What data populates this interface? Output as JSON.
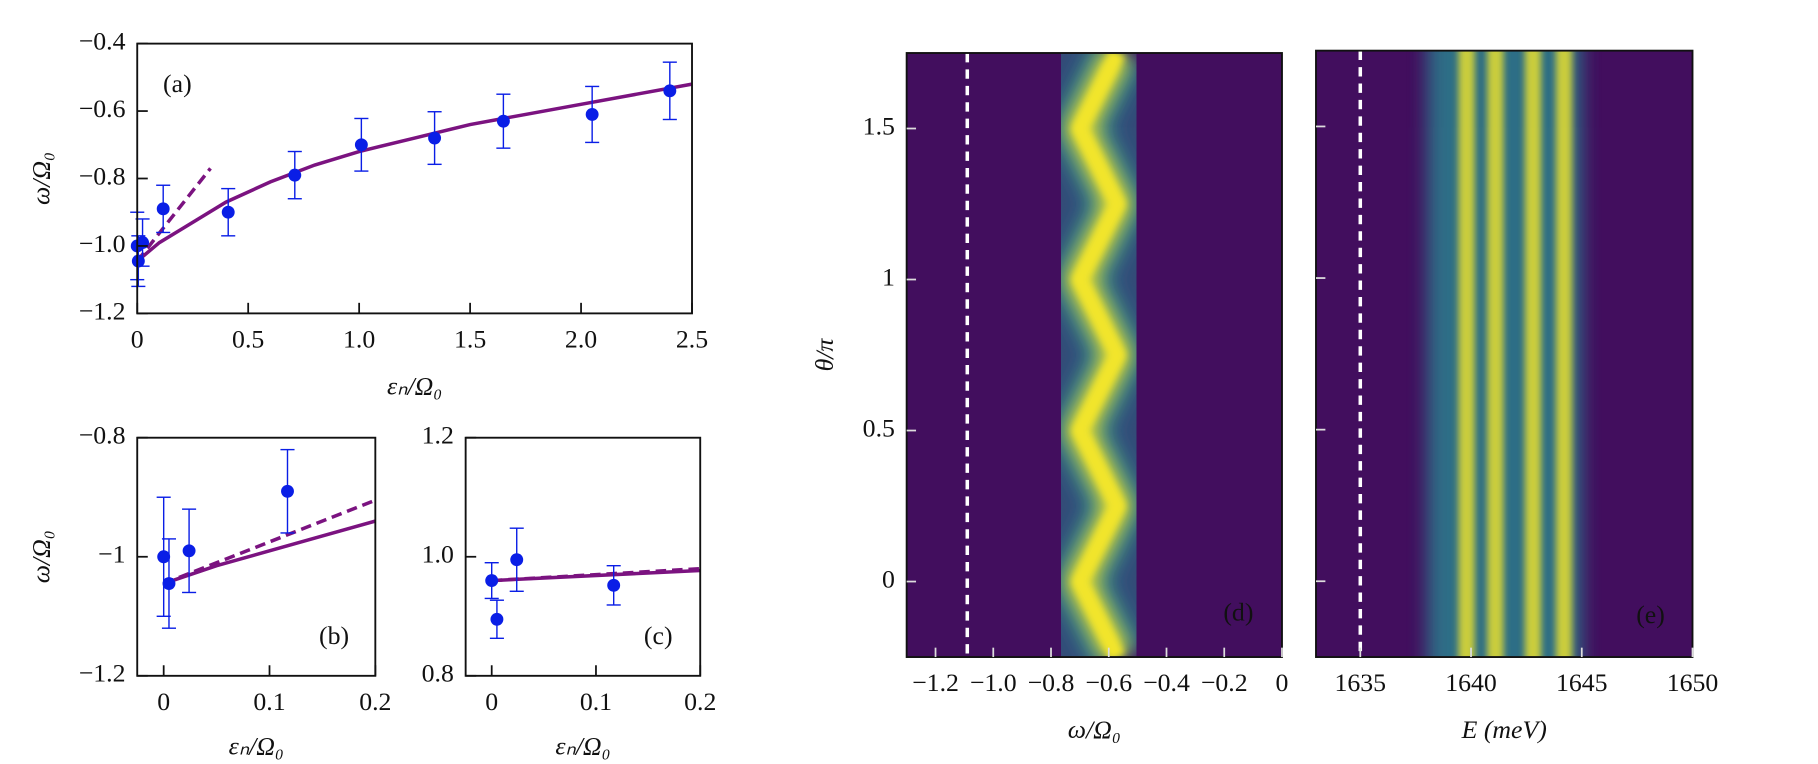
{
  "chart_data": [
    {
      "type": "scatter",
      "annotation": "(a)",
      "xlabel": "εₙ/Ω₀",
      "ylabel": "ω/Ω₀",
      "xlim": [
        0,
        2.5
      ],
      "xticks": [
        0,
        0.5,
        {
          "value": 1,
          "label": "1.0"
        },
        1.5,
        {
          "value": 2,
          "label": "2.0"
        },
        2.5
      ],
      "ylim": [
        -1.2,
        -0.4
      ],
      "yticks": [
        {
          "value": -1.2,
          "label": "−1.2"
        },
        {
          "value": -1.0,
          "label": "−1.0"
        },
        {
          "value": -0.8,
          "label": "−0.8"
        },
        {
          "value": -0.6,
          "label": "−0.6"
        },
        {
          "value": -0.4,
          "label": "−0.4"
        }
      ],
      "points": {
        "color": "#0a1ee6",
        "x": [
          0,
          0.005,
          0.024,
          0.117,
          0.41,
          0.71,
          1.01,
          1.34,
          1.65,
          2.05,
          2.4
        ],
        "values": [
          -1.0,
          -1.045,
          -0.99,
          -0.89,
          -0.9,
          -0.79,
          -0.7,
          -0.68,
          -0.63,
          -0.61,
          -0.54
        ],
        "errors": [
          0.1,
          0.075,
          0.07,
          0.07,
          0.07,
          0.07,
          0.078,
          0.078,
          0.08,
          0.083,
          0.085
        ]
      },
      "series": [
        {
          "style": "solid",
          "color": "#7b1380",
          "x": [
            0,
            0.1,
            0.2,
            0.4,
            0.6,
            0.8,
            1.0,
            1.25,
            1.5,
            1.75,
            2.0,
            2.25,
            2.5
          ],
          "values": [
            -1.045,
            -0.99,
            -0.95,
            -0.87,
            -0.81,
            -0.76,
            -0.72,
            -0.68,
            -0.64,
            -0.61,
            -0.58,
            -0.55,
            -0.52
          ]
        },
        {
          "style": "dashed",
          "color": "#7b1380",
          "x": [
            0,
            0.33
          ],
          "values": [
            -1.045,
            -0.77
          ]
        }
      ]
    },
    {
      "type": "scatter",
      "annotation": "(b)",
      "xlabel": "εₙ/Ω₀",
      "ylabel": "ω/Ω₀",
      "xlim": [
        -0.025,
        0.2
      ],
      "xticks": [
        0,
        0.1,
        0.2
      ],
      "ylim": [
        -1.2,
        -0.8
      ],
      "yticks": [
        {
          "value": -1.2,
          "label": "−1.2"
        },
        {
          "value": -1,
          "label": "−1"
        },
        {
          "value": -0.8,
          "label": "−0.8"
        }
      ],
      "points": {
        "color": "#0a1ee6",
        "x": [
          0,
          0.005,
          0.024,
          0.117
        ],
        "values": [
          -1.0,
          -1.045,
          -0.99,
          -0.89
        ],
        "errors": [
          0.1,
          0.075,
          0.07,
          0.07
        ]
      },
      "series": [
        {
          "style": "solid",
          "color": "#7b1380",
          "x": [
            0,
            0.05,
            0.1,
            0.15,
            0.2
          ],
          "values": [
            -1.045,
            -1.015,
            -0.99,
            -0.965,
            -0.94
          ]
        },
        {
          "style": "dashed",
          "color": "#7b1380",
          "x": [
            0,
            0.2
          ],
          "values": [
            -1.045,
            -0.905
          ]
        }
      ]
    },
    {
      "type": "scatter",
      "annotation": "(c)",
      "xlabel": "εₙ/Ω₀",
      "xlim": [
        -0.025,
        0.2
      ],
      "xticks": [
        0,
        0.1,
        0.2
      ],
      "ylim": [
        0.8,
        1.2
      ],
      "yticks": [
        0.8,
        {
          "value": 1,
          "label": "1.0"
        },
        1.2
      ],
      "points": {
        "color": "#0a1ee6",
        "x": [
          0,
          0.005,
          0.024,
          0.117
        ],
        "values": [
          0.96,
          0.895,
          0.995,
          0.952
        ],
        "errors": [
          0.03,
          0.032,
          0.053,
          0.033
        ]
      },
      "series": [
        {
          "style": "solid",
          "color": "#7b1380",
          "x": [
            0,
            0.2
          ],
          "values": [
            0.96,
            0.977
          ]
        },
        {
          "style": "dashed",
          "color": "#7b1380",
          "x": [
            0,
            0.2
          ],
          "values": [
            0.96,
            0.98
          ]
        }
      ]
    },
    {
      "type": "heatmap",
      "annotation": "(d)",
      "xlabel": "ω/Ω₀",
      "ylabel": "θ/π",
      "xlim": [
        -1.3,
        0
      ],
      "xticks": [
        {
          "value": -1.2,
          "label": "−1.2"
        },
        {
          "value": -1.0,
          "label": "−1.0"
        },
        {
          "value": -0.8,
          "label": "−0.8"
        },
        {
          "value": -0.6,
          "label": "−0.6"
        },
        {
          "value": -0.4,
          "label": "−0.4"
        },
        {
          "value": -0.2,
          "label": "−0.2"
        },
        0
      ],
      "ylim": [
        -0.25,
        1.75
      ],
      "yticks": [
        0,
        0.5,
        1,
        1.5
      ],
      "ytick_labels": true,
      "marker_line": -1.09,
      "colormap": [
        "#420e5e",
        "#2a7f8e",
        "#f2e52a"
      ],
      "ridge": {
        "theta": [
          -0.25,
          -0.125,
          0,
          0.125,
          0.25,
          0.375,
          0.5,
          0.625,
          0.75,
          0.875,
          1,
          1.125,
          1.25,
          1.375,
          1.5,
          1.625,
          1.75
        ],
        "omega": [
          -0.57,
          -0.635,
          -0.7,
          -0.635,
          -0.57,
          -0.635,
          -0.7,
          -0.635,
          -0.57,
          -0.635,
          -0.7,
          -0.635,
          -0.57,
          -0.635,
          -0.7,
          -0.635,
          -0.57
        ]
      }
    },
    {
      "type": "heatmap",
      "annotation": "(e)",
      "xlabel": "E (meV)",
      "xlim": [
        1633,
        1650
      ],
      "xticks": [
        1635,
        1640,
        1645,
        1650
      ],
      "ylim": [
        -0.25,
        1.75
      ],
      "yticks": [
        0,
        0.5,
        1,
        1.5
      ],
      "ytick_labels": false,
      "marker_line": 1635,
      "colormap": [
        "#420e5e",
        "#2a7f8e",
        "#f2e52a"
      ],
      "band": [
        1638,
        1645
      ],
      "streaks": [
        1639.8,
        1641.1,
        1642.8,
        1644.2
      ]
    }
  ]
}
